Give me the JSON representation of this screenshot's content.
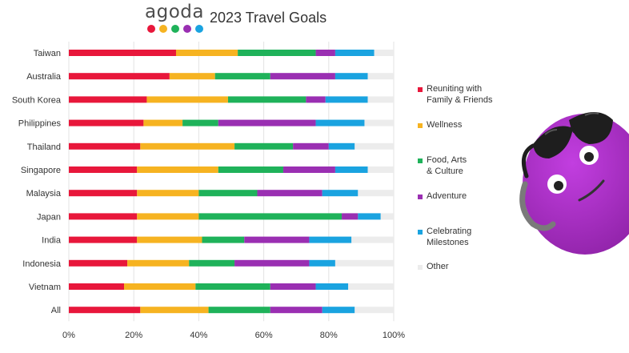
{
  "brand": {
    "logo_text": "agoda",
    "logo_dot_colors": [
      "#e8173b",
      "#f6b321",
      "#1fb25a",
      "#9a2fb2",
      "#1aa3e0"
    ]
  },
  "chart_data": {
    "type": "bar",
    "orientation": "horizontal",
    "stacked": true,
    "title": "2023 Travel Goals",
    "categories": [
      "Taiwan",
      "Australia",
      "South Korea",
      "Philippines",
      "Thailand",
      "Singapore",
      "Malaysia",
      "Japan",
      "India",
      "Indonesia",
      "Vietnam",
      "All"
    ],
    "series": [
      {
        "name": "Reuniting with Family & Friends",
        "name_lines": [
          "Reuniting with",
          "Family & Friends"
        ],
        "color": "#e8173b",
        "values": [
          33,
          31,
          24,
          23,
          22,
          21,
          21,
          21,
          21,
          18,
          17,
          22
        ]
      },
      {
        "name": "Wellness",
        "name_lines": [
          "Wellness"
        ],
        "color": "#f6b321",
        "values": [
          19,
          14,
          25,
          12,
          29,
          25,
          19,
          19,
          20,
          19,
          22,
          21
        ]
      },
      {
        "name": "Food, Arts & Culture",
        "name_lines": [
          "Food, Arts",
          "& Culture"
        ],
        "color": "#1fb25a",
        "values": [
          24,
          17,
          24,
          11,
          18,
          20,
          18,
          44,
          13,
          14,
          23,
          19
        ]
      },
      {
        "name": "Adventure",
        "name_lines": [
          "Adventure"
        ],
        "color": "#9a2fb2",
        "values": [
          6,
          20,
          6,
          30,
          11,
          16,
          20,
          5,
          20,
          23,
          14,
          16
        ]
      },
      {
        "name": "Celebrating Milestones",
        "name_lines": [
          "Celebrating",
          "Milestones"
        ],
        "color": "#1aa3e0",
        "values": [
          12,
          10,
          13,
          15,
          8,
          10,
          11,
          7,
          13,
          8,
          10,
          10
        ]
      },
      {
        "name": "Other",
        "name_lines": [
          "Other"
        ],
        "color": "#ececec",
        "values": [
          6,
          8,
          8,
          9,
          12,
          8,
          11,
          4,
          13,
          18,
          14,
          12
        ]
      }
    ],
    "xlim": [
      0,
      100
    ],
    "xticks": [
      "0%",
      "20%",
      "40%",
      "60%",
      "80%",
      "100%"
    ],
    "tick_values": [
      0,
      20,
      40,
      60,
      80,
      100
    ],
    "grid": true,
    "legend_position": "right"
  }
}
